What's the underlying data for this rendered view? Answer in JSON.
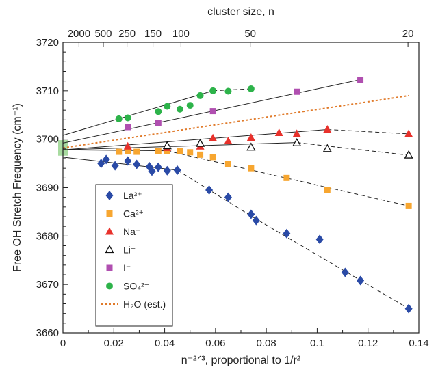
{
  "chart_data": {
    "type": "scatter",
    "title": "",
    "xlabel": "n⁻²ᐟ³, proportional to 1/r²",
    "ylabel": "Free OH Stretch Frequency (cm⁻¹)",
    "top_xlabel": "cluster size, n",
    "xlim": [
      0,
      0.14
    ],
    "ylim": [
      3660,
      3720
    ],
    "x_ticks": [
      "0",
      "0.02",
      "0.04",
      "0.06",
      "0.08",
      "0.1",
      "0.12",
      "0.14"
    ],
    "y_ticks": [
      "3660",
      "3670",
      "3680",
      "3690",
      "3700",
      "3710",
      "3720"
    ],
    "top_ticks": [
      {
        "label": "2000",
        "n": 2000
      },
      {
        "label": "500",
        "n": 500
      },
      {
        "label": "250",
        "n": 250
      },
      {
        "label": "150",
        "n": 150
      },
      {
        "label": "100",
        "n": 100
      },
      {
        "label": "50",
        "n": 50
      },
      {
        "label": "20",
        "n": 20
      }
    ],
    "grid": false,
    "legend_position": "bottom-left",
    "series": [
      {
        "name": "La³⁺",
        "marker": "diamond",
        "color": "#2a4aa6",
        "x": [
          0.015,
          0.017,
          0.0205,
          0.0255,
          0.029,
          0.034,
          0.035,
          0.0375,
          0.041,
          0.045,
          0.0575,
          0.065,
          0.074,
          0.076,
          0.088,
          0.101,
          0.111,
          0.117,
          0.136
        ],
        "y": [
          3695.0,
          3695.8,
          3694.5,
          3695.5,
          3694.8,
          3694.3,
          3693.4,
          3694.2,
          3693.5,
          3693.6,
          3689.5,
          3688.0,
          3684.5,
          3683.2,
          3680.5,
          3679.3,
          3672.5,
          3670.8,
          3665.0
        ]
      },
      {
        "name": "Ca²⁺",
        "marker": "square",
        "color": "#f7a630",
        "x": [
          0.022,
          0.0255,
          0.029,
          0.0375,
          0.041,
          0.046,
          0.05,
          0.054,
          0.059,
          0.065,
          0.074,
          0.088,
          0.104,
          0.136
        ],
        "y": [
          3697.4,
          3697.6,
          3697.4,
          3697.5,
          3697.6,
          3697.5,
          3697.3,
          3696.8,
          3696.3,
          3694.8,
          3694.0,
          3692.0,
          3689.5,
          3686.2
        ]
      },
      {
        "name": "Na⁺",
        "marker": "triangle",
        "color": "#e8312b",
        "x": [
          0.0255,
          0.041,
          0.054,
          0.059,
          0.065,
          0.074,
          0.085,
          0.092,
          0.104,
          0.136
        ],
        "y": [
          3698.5,
          3698.2,
          3698.5,
          3700.2,
          3699.6,
          3700.3,
          3701.3,
          3701.1,
          3702.0,
          3701.1
        ]
      },
      {
        "name": "Li⁺",
        "marker": "open-triangle",
        "color": "#111111",
        "x": [
          0.041,
          0.054,
          0.074,
          0.092,
          0.104,
          0.136
        ],
        "y": [
          3698.6,
          3699.1,
          3698.3,
          3699.2,
          3698.0,
          3696.7
        ]
      },
      {
        "name": "I⁻",
        "marker": "square",
        "color": "#b04fb0",
        "x": [
          0.0255,
          0.0375,
          0.059,
          0.092,
          0.117
        ],
        "y": [
          3702.5,
          3703.4,
          3705.8,
          3709.8,
          3712.3
        ]
      },
      {
        "name": "SO₄²⁻",
        "marker": "circle",
        "color": "#2db34a",
        "x": [
          0.022,
          0.0255,
          0.0375,
          0.041,
          0.046,
          0.05,
          0.054,
          0.059,
          0.065,
          0.074
        ],
        "y": [
          3704.2,
          3704.4,
          3705.7,
          3706.8,
          3706.2,
          3707.0,
          3709.0,
          3710.0,
          3709.9,
          3710.4
        ]
      }
    ],
    "fit_lines": [
      {
        "series": "La³⁺",
        "solid": {
          "x": [
            0,
            0.045
          ],
          "y": [
            3696.3,
            3693.6
          ]
        },
        "dashed": {
          "x": [
            0.045,
            0.076,
            0.136
          ],
          "y": [
            3693.6,
            3683.5,
            3665.0
          ]
        }
      },
      {
        "series": "Ca²⁺",
        "solid": {
          "x": [
            0,
            0.041
          ],
          "y": [
            3697.8,
            3697.6
          ]
        },
        "dashed": {
          "x": [
            0.041,
            0.136
          ],
          "y": [
            3697.6,
            3686.2
          ]
        }
      },
      {
        "series": "Na⁺",
        "solid": {
          "x": [
            0,
            0.104
          ],
          "y": [
            3697.8,
            3702.0
          ]
        },
        "dashed": {
          "x": [
            0.104,
            0.136
          ],
          "y": [
            3702.0,
            3701.1
          ]
        }
      },
      {
        "series": "Li⁺",
        "solid": {
          "x": [
            0,
            0.092
          ],
          "y": [
            3697.8,
            3699.3
          ]
        },
        "dashed": {
          "x": [
            0.092,
            0.136
          ],
          "y": [
            3699.3,
            3696.7
          ]
        }
      },
      {
        "series": "I⁻",
        "solid": {
          "x": [
            0,
            0.117
          ],
          "y": [
            3699.2,
            3712.3
          ]
        }
      },
      {
        "series": "SO₄²⁻",
        "solid": {
          "x": [
            0,
            0.059
          ],
          "y": [
            3700.8,
            3710.0
          ]
        },
        "dashed": {
          "x": [
            0.059,
            0.074
          ],
          "y": [
            3710.0,
            3710.4
          ]
        }
      }
    ],
    "h2o_line": {
      "name": "H₂O (est.)",
      "color": "#e07a2a",
      "x": [
        0,
        0.136
      ],
      "y": [
        3698.2,
        3709.0
      ]
    },
    "h2o_band": {
      "color": "#a8dba0",
      "y": [
        3696.6,
        3699.8
      ]
    }
  }
}
